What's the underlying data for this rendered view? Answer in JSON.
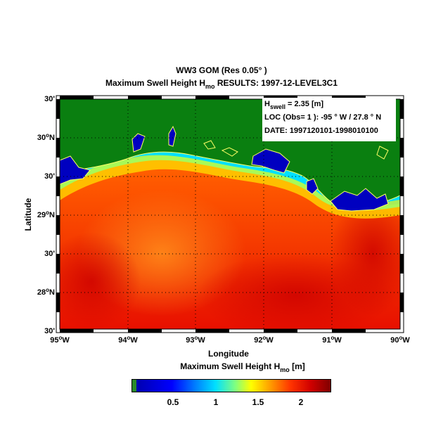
{
  "title": {
    "line1": "WW3 GOM  (Res 0.05° )",
    "line2_prefix": "Maximum Swell   Height H",
    "line2_sub": "mo",
    "line2_suffix": "  RESULTS:  1997-12-LEVEL3C1"
  },
  "info": {
    "h_prefix": "H",
    "h_sub": "swell",
    "h_value": "  =  2.35 [m]",
    "loc": "LOC (Obs= 1 ):  -95 ° W / 27.8 ° N",
    "date": "DATE: 1997120101-1998010100"
  },
  "axes": {
    "xlabel": "Longitude",
    "ylabel": "Latitude",
    "xticks": [
      {
        "deg": "95",
        "label": "W"
      },
      {
        "deg": "94",
        "label": "W"
      },
      {
        "deg": "93",
        "label": "W"
      },
      {
        "deg": "92",
        "label": "W"
      },
      {
        "deg": "91",
        "label": "W"
      },
      {
        "deg": "90",
        "label": "W"
      }
    ],
    "yticks": [
      {
        "text": "30'"
      },
      {
        "deg": "30",
        "label": "N"
      },
      {
        "text": "30'"
      },
      {
        "deg": "29",
        "label": "N"
      },
      {
        "text": "30'"
      },
      {
        "deg": "28",
        "label": "N"
      },
      {
        "text": "30'"
      }
    ]
  },
  "colorbar": {
    "label_prefix": "Maximum Swell   Height H",
    "label_sub": "mo",
    "label_suffix": "   [m]",
    "ticks": [
      "0.5",
      "1",
      "1.5",
      "2"
    ]
  },
  "colors": {
    "land": "#0a7f10",
    "coastline": "#ffff66",
    "shallow": "#0000c0",
    "sea_high": "#e01000",
    "sea_mid": "#ff7a00"
  }
}
